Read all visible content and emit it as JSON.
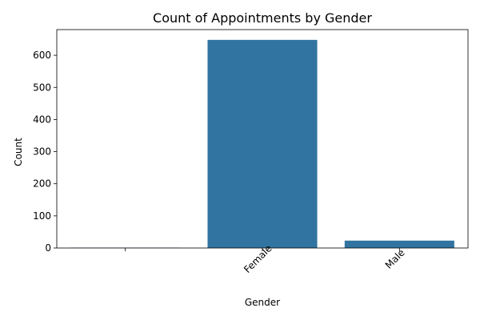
{
  "chart_data": {
    "type": "bar",
    "title": "Count of Appointments by Gender",
    "xlabel": "Gender",
    "ylabel": "Count",
    "categories": [
      "",
      "Female",
      "Male"
    ],
    "values": [
      1,
      648,
      23
    ],
    "ylim": [
      0,
      680
    ],
    "yticks": [
      0,
      100,
      200,
      300,
      400,
      500,
      600
    ],
    "xtick_rotation": 45,
    "bar_color": "#3274a1",
    "grid": false,
    "legend": "none"
  }
}
